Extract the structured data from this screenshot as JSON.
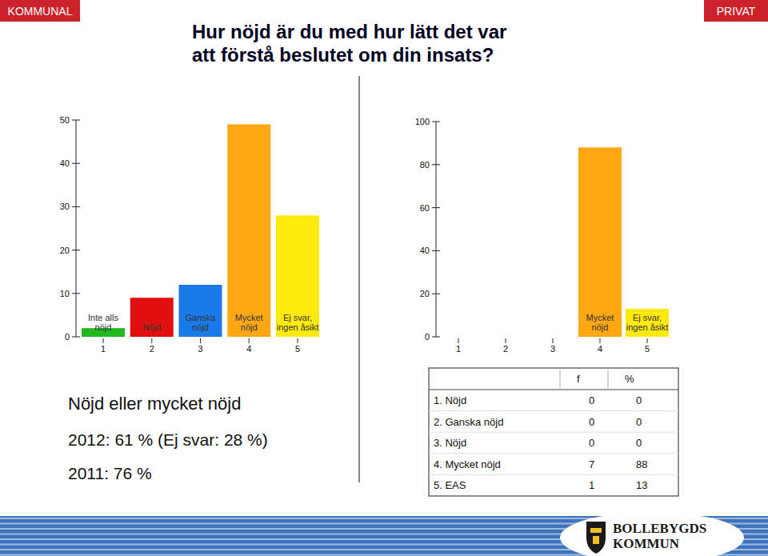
{
  "header": {
    "left_tag": "KOMMUNAL",
    "right_tag": "PRIVAT",
    "title_lines": [
      "Hur nöjd är du med hur lätt det var",
      "att förstå beslutet om din insats?"
    ]
  },
  "chart_data": [
    {
      "type": "bar",
      "categories": [
        "1",
        "2",
        "3",
        "4",
        "5"
      ],
      "values": [
        2,
        9,
        12,
        49,
        28
      ],
      "colors": [
        "#22b822",
        "#e01010",
        "#1a7ae8",
        "#ffa814",
        "#ffea10"
      ],
      "bar_labels": [
        [
          "Inte alls",
          "nöjd"
        ],
        [
          "Nöjd"
        ],
        [
          "Ganska",
          "nöjd"
        ],
        [
          "Mycket",
          "nöjd"
        ],
        [
          "Ej svar,",
          "ingen åsikt"
        ]
      ],
      "ylim": [
        0,
        50
      ],
      "yticks": [
        0,
        10,
        20,
        30,
        40,
        50
      ],
      "grid": false
    },
    {
      "type": "bar",
      "categories": [
        "1",
        "2",
        "3",
        "4",
        "5"
      ],
      "values": [
        0,
        0,
        0,
        88,
        13
      ],
      "colors": [
        "#22b822",
        "#e01010",
        "#1a7ae8",
        "#ffa814",
        "#ffea10"
      ],
      "bar_labels": [
        null,
        null,
        null,
        [
          "Mycket",
          "nöjd"
        ],
        [
          "Ej svar,",
          "ingen åsikt"
        ]
      ],
      "ylim": [
        0,
        100
      ],
      "yticks": [
        0,
        20,
        40,
        60,
        80,
        100
      ],
      "grid": false
    }
  ],
  "summary": {
    "heading": "Nöjd eller mycket nöjd",
    "lines": [
      "2012: 61 % (Ej svar: 28 %)",
      "2011: 76 %"
    ]
  },
  "table": {
    "columns": [
      "f",
      "%"
    ],
    "rows": [
      [
        "1. Nöjd",
        0,
        0
      ],
      [
        "2. Ganska nöjd",
        0,
        0
      ],
      [
        "3. Nöjd",
        0,
        0
      ],
      [
        "4. Mycket nöjd",
        7,
        88
      ],
      [
        "5. EAS",
        1,
        13
      ]
    ]
  },
  "footer": {
    "logo_lines": [
      "BOLLEBYGDS",
      "KOMMUN"
    ]
  }
}
